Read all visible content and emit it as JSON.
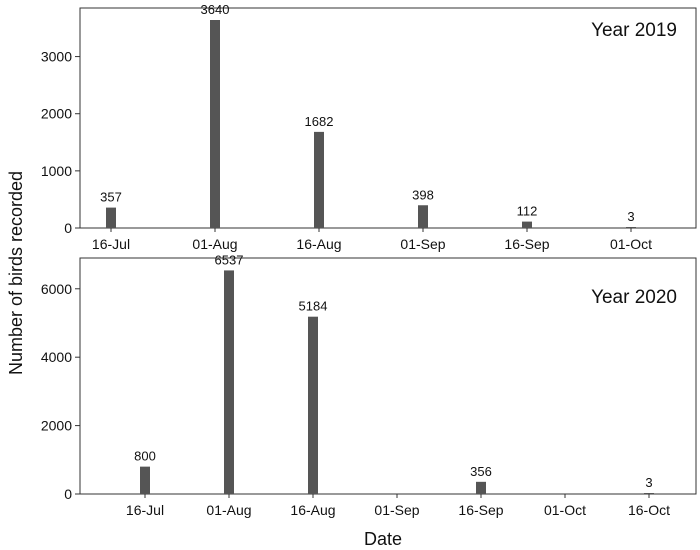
{
  "figure": {
    "ylabel": "Number of birds recorded",
    "xlabel": "Date"
  },
  "chart_data": [
    {
      "type": "bar",
      "title": "Year 2019",
      "x_ticks": [
        "16-Jul",
        "01-Aug",
        "16-Aug",
        "01-Sep",
        "16-Sep",
        "01-Oct"
      ],
      "y_ticks": [
        0,
        1000,
        2000,
        3000
      ],
      "ylim": [
        0,
        3850
      ],
      "x": [
        "16-Jul",
        "01-Aug",
        "16-Aug",
        "01-Sep",
        "16-Sep",
        "01-Oct"
      ],
      "values": [
        357,
        3640,
        1682,
        398,
        112,
        3
      ],
      "data_labels": [
        "357",
        "3640",
        "1682",
        "398",
        "112",
        "3"
      ],
      "bar_color": "#555555",
      "grid": false,
      "legend": false
    },
    {
      "type": "bar",
      "title": "Year 2020",
      "x_ticks": [
        "16-Jul",
        "01-Aug",
        "16-Aug",
        "01-Sep",
        "16-Sep",
        "01-Oct",
        "16-Oct"
      ],
      "y_ticks": [
        0,
        2000,
        4000,
        6000
      ],
      "ylim": [
        0,
        6900
      ],
      "x": [
        "16-Jul",
        "01-Aug",
        "16-Aug",
        "16-Sep",
        "16-Oct"
      ],
      "values": [
        800,
        6537,
        5184,
        356,
        3
      ],
      "data_labels": [
        "800",
        "6537",
        "5184",
        "356",
        "3"
      ],
      "bar_color": "#555555",
      "grid": false,
      "legend": false
    }
  ]
}
